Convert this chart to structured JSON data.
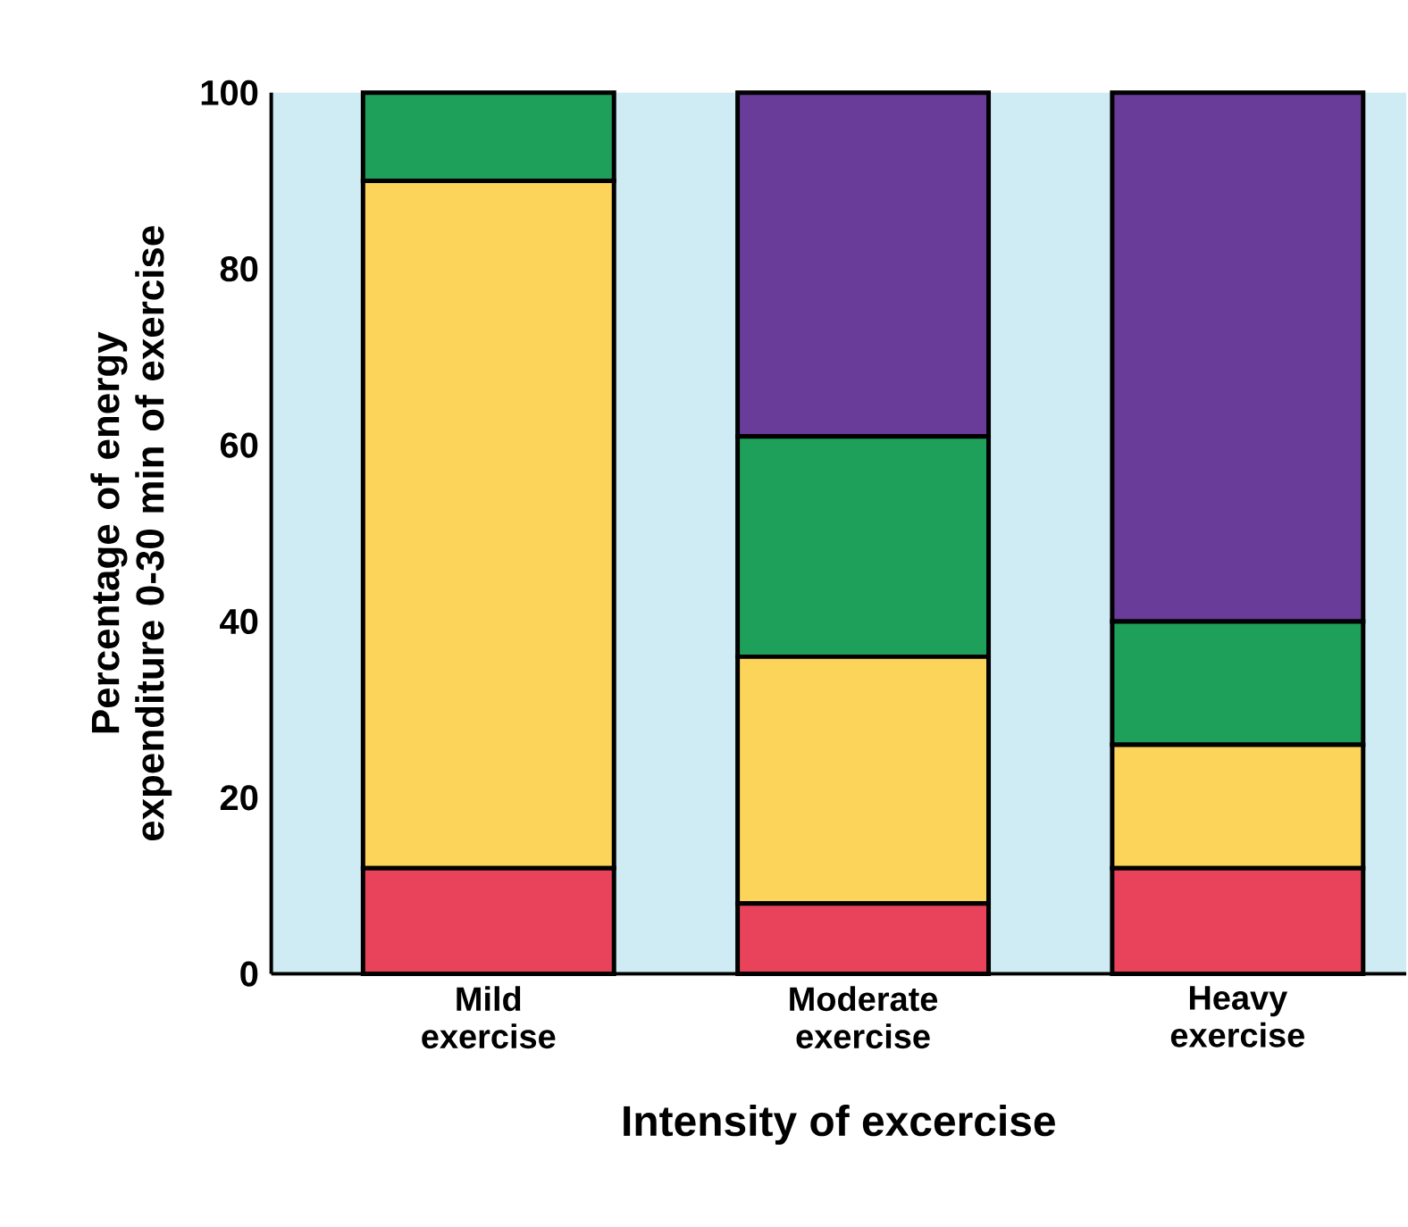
{
  "chart_data": {
    "type": "bar",
    "stacked": true,
    "xlabel": "Intensity of excercise",
    "ylabel": "Percentage of energy expenditure 0-30 min of exercise",
    "categories": [
      "Mild exercise",
      "Moderate exercise",
      "Heavy exercise"
    ],
    "series": [
      {
        "color": "#e8435a",
        "values": [
          12,
          8,
          12
        ]
      },
      {
        "color": "#fcd45a",
        "values": [
          78,
          28,
          14
        ]
      },
      {
        "color": "#1fa05a",
        "values": [
          10,
          25,
          14
        ]
      },
      {
        "color": "#6a3c9a",
        "values": [
          null,
          39,
          60
        ]
      }
    ],
    "ylim": [
      0,
      100
    ],
    "yticks": [
      0,
      20,
      40,
      60,
      80,
      100
    ]
  }
}
